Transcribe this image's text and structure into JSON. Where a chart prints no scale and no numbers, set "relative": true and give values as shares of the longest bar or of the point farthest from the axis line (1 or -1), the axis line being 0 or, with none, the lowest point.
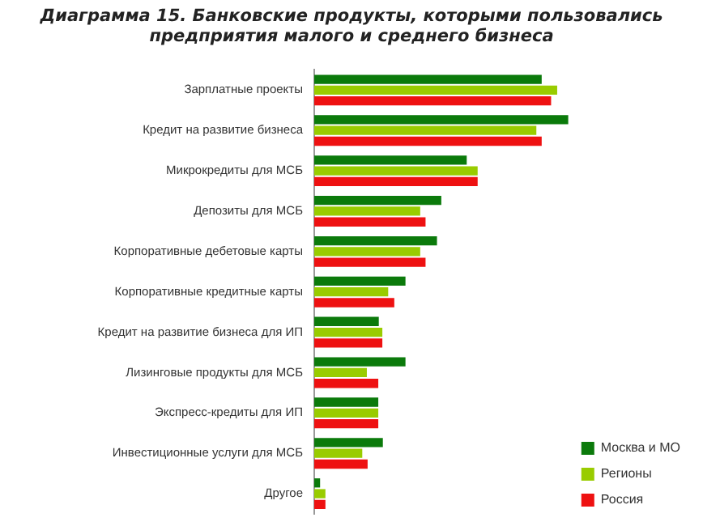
{
  "chart_data": {
    "type": "bar",
    "orientation": "horizontal",
    "relative": true,
    "title": "Диаграмма 15. Банковские продукты, которыми пользовались предприятия малого и среднего бизнеса",
    "categories": [
      "Зарплатные проекты",
      "Кредит на развитие бизнеса",
      "Микрокредиты для МСБ",
      "Депозиты для МСБ",
      "Корпоративные дебетовые карты",
      "Корпоративные кредитные карты",
      "Кредит на развитие бизнеса для ИП",
      "Лизинговые продукты для МСБ",
      "Экспресс-кредиты для ИП",
      "Инвестиционные услуги для МСБ",
      "Другое"
    ],
    "series": [
      {
        "name": "Москва и МО",
        "color": "#0b7a0b",
        "values": [
          0.895,
          1,
          0.6,
          0.5,
          0.483,
          0.359,
          0.254,
          0.359,
          0.252,
          0.27,
          0.023
        ]
      },
      {
        "name": "Регионы",
        "color": "#99cc00",
        "values": [
          0.956,
          0.874,
          0.643,
          0.417,
          0.417,
          0.291,
          0.268,
          0.207,
          0.252,
          0.189,
          0.044
        ]
      },
      {
        "name": "Россия",
        "color": "#ee1111",
        "values": [
          0.932,
          0.895,
          0.643,
          0.438,
          0.438,
          0.315,
          0.268,
          0.252,
          0.252,
          0.21,
          0.044
        ]
      }
    ],
    "grid": false,
    "legend": "bottom right"
  }
}
